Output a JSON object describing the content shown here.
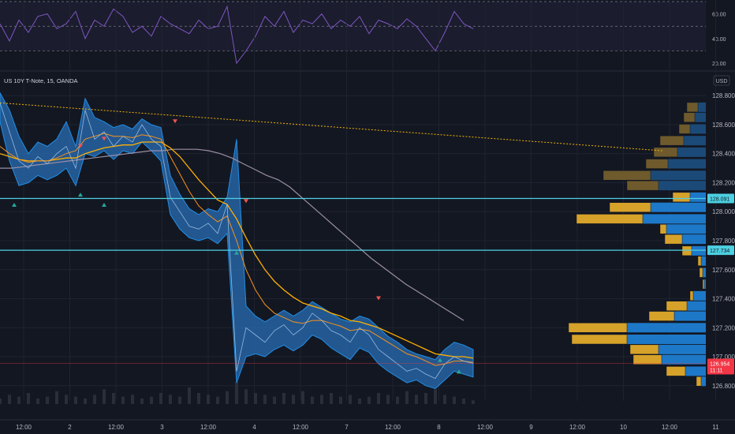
{
  "symbol": {
    "title": "US 10Y T-Note, 15, OANDA",
    "currency": "USD"
  },
  "colors": {
    "background": "#131722",
    "grid": "#1f2330",
    "band": "#2a6db5",
    "band_edge": "#1f8fe6",
    "price_line": "#ffb000",
    "ema_orange": "#f7931a",
    "ma_gray": "#9a8fa5",
    "trend_dotted": "#f0b400",
    "level_line": "#4dd0e1",
    "rsi_line": "#7e57c2",
    "vp_blue": "#1e78c8",
    "vp_gold": "#d7a22a",
    "vp_blue_dim": "#1c4a78",
    "vp_gold_dim": "#6e5a2c",
    "last_price_tag": "#f23645",
    "up_candle": "#26a69a",
    "down_candle": "#ef5350"
  },
  "chart_data": [
    {
      "type": "line",
      "name": "rsi",
      "yticks": [
        "60.00",
        "40.00",
        "20.00"
      ],
      "ylim": [
        15,
        70
      ],
      "levels": [
        70,
        50,
        30
      ],
      "x": [
        0,
        2,
        4,
        6,
        8,
        10,
        12,
        14,
        16,
        18,
        20,
        22,
        24,
        26,
        28,
        30,
        32,
        34,
        36,
        38,
        40,
        42,
        44,
        46,
        48,
        50,
        52,
        54,
        56,
        58,
        60,
        62,
        64,
        66,
        68,
        70,
        72,
        74,
        76,
        78,
        80,
        82,
        84,
        86,
        88,
        90,
        92,
        94,
        96,
        98,
        100
      ],
      "values": [
        52,
        38,
        55,
        45,
        58,
        60,
        48,
        52,
        62,
        40,
        55,
        50,
        64,
        58,
        45,
        50,
        42,
        58,
        52,
        48,
        44,
        55,
        48,
        50,
        66,
        20,
        30,
        42,
        58,
        50,
        62,
        45,
        55,
        52,
        60,
        48,
        55,
        50,
        58,
        44,
        55,
        52,
        48,
        56,
        50,
        40,
        30,
        45,
        62,
        52,
        48
      ]
    },
    {
      "type": "line",
      "name": "price",
      "yticks": [
        "128.800",
        "128.600",
        "128.400",
        "128.200",
        "128.000",
        "127.800",
        "127.600",
        "127.400",
        "127.200",
        "127.000",
        "126.800"
      ],
      "ylim": [
        126.75,
        128.85
      ],
      "xticks": [
        "12:00",
        "2",
        "12:00",
        "3",
        "12:00",
        "4",
        "12:00",
        "7",
        "12:00",
        "8",
        "12:00",
        "9",
        "12:00",
        "10",
        "12:00",
        "11",
        "12:00"
      ],
      "x": [
        0,
        2,
        4,
        6,
        8,
        10,
        12,
        14,
        16,
        18,
        20,
        22,
        24,
        26,
        28,
        30,
        32,
        34,
        36,
        38,
        40,
        42,
        44,
        46,
        48,
        50,
        52,
        54,
        56,
        58,
        60,
        62,
        64,
        66,
        68,
        70,
        72,
        74,
        76,
        78,
        80,
        82,
        84,
        86,
        88,
        90,
        92,
        94,
        96,
        98,
        100
      ],
      "values": [
        128.75,
        128.55,
        128.35,
        128.3,
        128.38,
        128.33,
        128.4,
        128.45,
        128.3,
        128.7,
        128.5,
        128.55,
        128.45,
        128.52,
        128.48,
        128.6,
        128.5,
        128.45,
        128.1,
        128.0,
        127.9,
        127.88,
        127.92,
        127.85,
        128.05,
        126.9,
        127.2,
        127.15,
        127.1,
        127.18,
        127.22,
        127.15,
        127.2,
        127.3,
        127.25,
        127.18,
        127.15,
        127.1,
        127.2,
        127.15,
        127.05,
        127.0,
        126.95,
        126.9,
        126.92,
        126.88,
        126.85,
        126.95,
        127.0,
        126.97,
        126.954
      ],
      "band_upper": [
        128.82,
        128.7,
        128.52,
        128.4,
        128.48,
        128.45,
        128.5,
        128.62,
        128.45,
        128.78,
        128.65,
        128.62,
        128.58,
        128.6,
        128.57,
        128.64,
        128.6,
        128.58,
        128.25,
        128.12,
        128.02,
        127.98,
        128.02,
        128.0,
        128.1,
        128.5,
        127.35,
        127.28,
        127.24,
        127.28,
        127.32,
        127.28,
        127.32,
        127.38,
        127.34,
        127.3,
        127.26,
        127.24,
        127.28,
        127.26,
        127.2,
        127.14,
        127.1,
        127.05,
        127.02,
        127.0,
        126.98,
        127.05,
        127.1,
        127.08,
        127.05
      ],
      "band_lower": [
        128.62,
        128.35,
        128.18,
        128.2,
        128.25,
        128.22,
        128.25,
        128.3,
        128.18,
        128.4,
        128.38,
        128.42,
        128.36,
        128.42,
        128.4,
        128.48,
        128.42,
        128.35,
        127.98,
        127.88,
        127.82,
        127.8,
        127.82,
        127.78,
        127.85,
        126.82,
        127.0,
        127.02,
        127.0,
        127.05,
        127.08,
        127.04,
        127.08,
        127.15,
        127.12,
        127.06,
        127.02,
        126.98,
        127.06,
        127.03,
        126.95,
        126.9,
        126.86,
        126.82,
        126.84,
        126.8,
        126.78,
        126.84,
        126.9,
        126.88,
        126.86
      ],
      "ema_fast": [
        128.45,
        128.4,
        128.36,
        128.34,
        128.35,
        128.35,
        128.37,
        128.4,
        128.42,
        128.5,
        128.52,
        128.54,
        128.52,
        128.52,
        128.51,
        128.53,
        128.52,
        128.5,
        128.38,
        128.26,
        128.14,
        128.04,
        127.98,
        127.93,
        127.97,
        127.8,
        127.6,
        127.46,
        127.36,
        127.3,
        127.27,
        127.24,
        127.23,
        127.25,
        127.25,
        127.23,
        127.21,
        127.18,
        127.19,
        127.18,
        127.14,
        127.1,
        127.06,
        127.02,
        127.0,
        126.97,
        126.94,
        126.95,
        126.97,
        126.97,
        126.96
      ],
      "ema_slow": [
        128.4,
        128.38,
        128.36,
        128.35,
        128.35,
        128.35,
        128.36,
        128.37,
        128.37,
        128.4,
        128.42,
        128.44,
        128.45,
        128.46,
        128.46,
        128.48,
        128.48,
        128.48,
        128.44,
        128.38,
        128.3,
        128.22,
        128.15,
        128.08,
        128.05,
        127.95,
        127.82,
        127.7,
        127.6,
        127.52,
        127.46,
        127.41,
        127.37,
        127.35,
        127.33,
        127.3,
        127.28,
        127.25,
        127.24,
        127.22,
        127.2,
        127.17,
        127.14,
        127.11,
        127.08,
        127.05,
        127.02,
        127.01,
        127.0,
        127.0,
        126.99
      ],
      "ma_long": [
        128.3,
        128.3,
        128.31,
        128.32,
        128.33,
        128.34,
        128.35,
        128.36,
        128.37,
        128.38,
        128.39,
        128.4,
        128.41,
        128.42,
        128.42,
        128.43,
        128.43,
        128.43,
        128.42,
        128.4,
        128.37,
        128.33,
        128.29,
        128.25,
        128.22,
        128.17,
        128.1,
        128.03,
        127.96,
        127.89,
        127.82,
        127.75,
        127.68,
        127.62,
        127.56,
        127.5,
        127.45,
        127.4,
        127.35,
        127.3,
        127.25
      ],
      "hlines": [
        128.091,
        127.734
      ],
      "hline_labels": [
        "128.091",
        "127.734"
      ],
      "last_price": "126.954",
      "last_sub": "11:11",
      "trend_from": [
        0,
        128.75
      ],
      "trend_to": [
        140,
        128.42
      ],
      "markers_down": [
        [
          17,
          128.45
        ],
        [
          22,
          128.5
        ],
        [
          37,
          128.62
        ],
        [
          52,
          128.07
        ],
        [
          80,
          127.4
        ]
      ],
      "markers_up": [
        [
          3,
          128.05
        ],
        [
          17,
          128.12
        ],
        [
          22,
          128.05
        ],
        [
          50,
          127.72
        ],
        [
          93,
          126.98
        ],
        [
          97,
          126.9
        ]
      ],
      "volume_profile": [
        {
          "price": 128.72,
          "blue": 10,
          "gold": 14
        },
        {
          "price": 128.65,
          "blue": 14,
          "gold": 14
        },
        {
          "price": 128.57,
          "blue": 20,
          "gold": 14
        },
        {
          "price": 128.49,
          "blue": 28,
          "gold": 30
        },
        {
          "price": 128.41,
          "blue": 36,
          "gold": 30
        },
        {
          "price": 128.33,
          "blue": 48,
          "gold": 28
        },
        {
          "price": 128.25,
          "blue": 70,
          "gold": 60
        },
        {
          "price": 128.18,
          "blue": 60,
          "gold": 40
        },
        {
          "price": 128.1,
          "blue": 20,
          "gold": 22
        },
        {
          "price": 128.03,
          "blue": 70,
          "gold": 52
        },
        {
          "price": 127.95,
          "blue": 80,
          "gold": 84
        },
        {
          "price": 127.88,
          "blue": 50,
          "gold": 8
        },
        {
          "price": 127.81,
          "blue": 30,
          "gold": 22
        },
        {
          "price": 127.73,
          "blue": 18,
          "gold": 12
        },
        {
          "price": 127.66,
          "blue": 6,
          "gold": 4
        },
        {
          "price": 127.58,
          "blue": 4,
          "gold": 4
        },
        {
          "price": 127.5,
          "blue": 2,
          "gold": 2
        },
        {
          "price": 127.42,
          "blue": 16,
          "gold": 4
        },
        {
          "price": 127.35,
          "blue": 24,
          "gold": 26
        },
        {
          "price": 127.28,
          "blue": 40,
          "gold": 32
        },
        {
          "price": 127.2,
          "blue": 100,
          "gold": 74
        },
        {
          "price": 127.12,
          "blue": 100,
          "gold": 70
        },
        {
          "price": 127.05,
          "blue": 60,
          "gold": 36
        },
        {
          "price": 126.98,
          "blue": 56,
          "gold": 36
        },
        {
          "price": 126.9,
          "blue": 26,
          "gold": 24
        },
        {
          "price": 126.83,
          "blue": 6,
          "gold": 6
        }
      ]
    },
    {
      "type": "bar",
      "name": "volume",
      "values": [
        3,
        5,
        4,
        6,
        3,
        4,
        7,
        5,
        4,
        3,
        5,
        8,
        6,
        4,
        5,
        3,
        4,
        6,
        5,
        4,
        9,
        6,
        5,
        4,
        7,
        12,
        8,
        6,
        5,
        4,
        6,
        5,
        7,
        4,
        5,
        6,
        4,
        5,
        3,
        4,
        6,
        5,
        4,
        7,
        5,
        6,
        8,
        5,
        4,
        3,
        2
      ]
    }
  ]
}
